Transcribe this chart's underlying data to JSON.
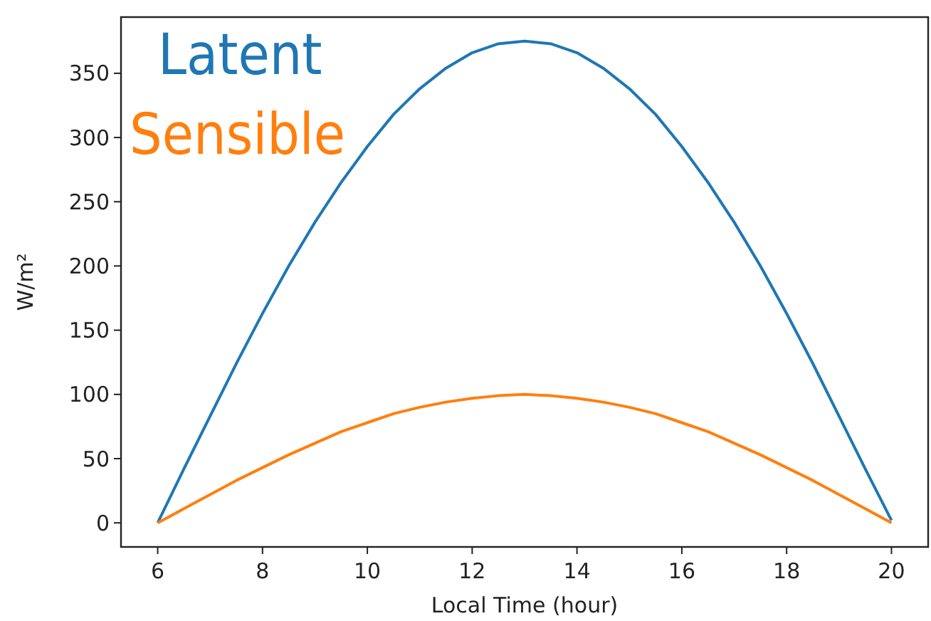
{
  "chart_data": {
    "type": "line",
    "xlabel": "Local Time (hour)",
    "ylabel": "W/m²",
    "x": [
      6,
      6.5,
      7,
      7.5,
      8,
      8.5,
      9,
      9.5,
      10,
      10.5,
      11,
      11.5,
      12,
      12.5,
      13,
      13.5,
      14,
      14.5,
      15,
      15.5,
      16,
      16.5,
      17,
      17.5,
      18,
      18.5,
      19,
      19.5,
      20
    ],
    "series": [
      {
        "name": "Latent",
        "color": "#1f77b4",
        "values": [
          0,
          42,
          83,
          124,
          163,
          200,
          234,
          265,
          293,
          318,
          338,
          354,
          366,
          373,
          375,
          373,
          366,
          354,
          338,
          318,
          293,
          265,
          234,
          200,
          163,
          124,
          83,
          42,
          2
        ]
      },
      {
        "name": "Sensible",
        "color": "#ff7f0e",
        "values": [
          0,
          11,
          22,
          33,
          43,
          53,
          62,
          71,
          78,
          85,
          90,
          94,
          97,
          99,
          100,
          99,
          97,
          94,
          90,
          85,
          78,
          71,
          62,
          53,
          43,
          33,
          22,
          11,
          0
        ]
      }
    ],
    "xlim": [
      5.3,
      20.7
    ],
    "ylim": [
      -18.75,
      393.75
    ],
    "xticks": [
      6,
      8,
      10,
      12,
      14,
      16,
      18,
      20
    ],
    "yticks": [
      0,
      50,
      100,
      150,
      200,
      250,
      300,
      350
    ],
    "grid": false,
    "legend": "top left",
    "marker": "none",
    "line_style": "solid"
  }
}
